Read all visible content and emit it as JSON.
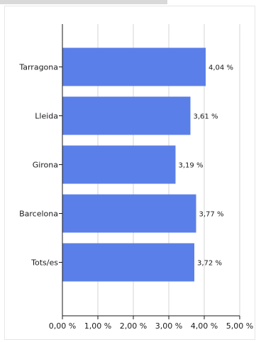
{
  "chart_data": {
    "type": "bar",
    "orientation": "horizontal",
    "categories": [
      "Tarragona",
      "Lleida",
      "Girona",
      "Barcelona",
      "Tots/es"
    ],
    "values": [
      4.04,
      3.61,
      3.19,
      3.77,
      3.72
    ],
    "data_labels": [
      "4,04 %",
      "3,61 %",
      "3,19 %",
      "3,77 %",
      "3,72 %"
    ],
    "x_ticks": [
      0,
      1,
      2,
      3,
      4,
      5
    ],
    "x_tick_labels": [
      "0,00 %",
      "1,00 %",
      "2,00 %",
      "3,00 %",
      "4,00 %",
      "5,00 %"
    ],
    "xlim": [
      0,
      5
    ],
    "grid": "vertical",
    "title": "",
    "xlabel": "",
    "ylabel": "",
    "colors": {
      "bar": "#5b7fe8",
      "grid": "#d4d4d4",
      "axis": "#1a1a1a"
    }
  }
}
